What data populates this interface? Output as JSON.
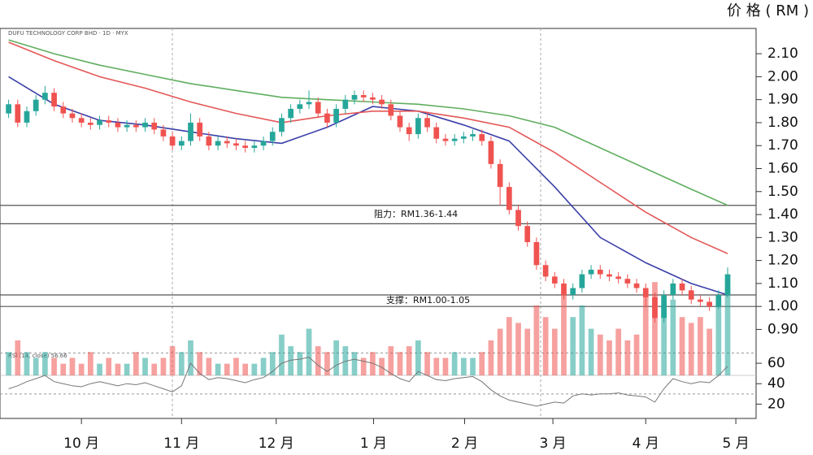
{
  "chart_data": {
    "type": "candlestick",
    "axis_title": "价 格 ( RM )",
    "legend_text": "DUFU TECHNOLOGY CORP BHD · 1D · MYX",
    "rsi_label": "RSI (14, close) 56.66",
    "annotations": [
      {
        "text": "阻力：RM1.36-1.44",
        "lines": [
          1.44,
          1.36
        ]
      },
      {
        "text": "支撑：RM1.00-1.05",
        "lines": [
          1.05,
          1.0
        ]
      }
    ],
    "xlim": [
      -0.5,
      81.5
    ],
    "xticks": [
      {
        "value": 8.0,
        "label": "10 月"
      },
      {
        "value": 19.0,
        "label": "11 月"
      },
      {
        "value": 29.4,
        "label": "12 月"
      },
      {
        "value": 40.1,
        "label": "1 月"
      },
      {
        "value": 50.1,
        "label": "2 月"
      },
      {
        "value": 59.8,
        "label": "3 月"
      },
      {
        "value": 70.0,
        "label": "4 月"
      },
      {
        "value": 79.9,
        "label": "5 月"
      }
    ],
    "ylim": [
      0.7,
      2.21
    ],
    "yticks": [
      {
        "value": 2.1,
        "label": "2.10"
      },
      {
        "value": 2.0,
        "label": "2.00"
      },
      {
        "value": 1.9,
        "label": "1.90"
      },
      {
        "value": 1.8,
        "label": "1.80"
      },
      {
        "value": 1.7,
        "label": "1.70"
      },
      {
        "value": 1.6,
        "label": "1.60"
      },
      {
        "value": 1.5,
        "label": "1.50"
      },
      {
        "value": 1.4,
        "label": "1.40"
      },
      {
        "value": 1.3,
        "label": "1.30"
      },
      {
        "value": 1.2,
        "label": "1.20"
      },
      {
        "value": 1.1,
        "label": "1.10"
      },
      {
        "value": 1.0,
        "label": "1.00"
      },
      {
        "value": 0.9,
        "label": "0.90"
      }
    ],
    "up_color": "#26a69a",
    "down_color": "#ef5350",
    "candles": {
      "x": [
        0,
        1,
        2,
        3,
        4,
        5,
        6,
        7,
        8,
        9,
        10,
        11,
        12,
        13,
        14,
        15,
        16,
        17,
        18,
        19,
        20,
        21,
        22,
        23,
        24,
        25,
        26,
        27,
        28,
        29,
        30,
        31,
        32,
        33,
        34,
        35,
        36,
        37,
        38,
        39,
        40,
        41,
        42,
        43,
        44,
        45,
        46,
        47,
        48,
        49,
        50,
        51,
        52,
        53,
        54,
        55,
        56,
        57,
        58,
        59,
        60,
        61,
        62,
        63,
        64,
        65,
        66,
        67,
        68,
        69,
        70,
        71,
        72,
        73,
        74,
        75,
        76,
        77,
        78,
        79
      ],
      "open": [
        1.84,
        1.88,
        1.8,
        1.85,
        1.9,
        1.93,
        1.87,
        1.84,
        1.82,
        1.8,
        1.79,
        1.81,
        1.8,
        1.78,
        1.79,
        1.78,
        1.8,
        1.77,
        1.74,
        1.7,
        1.72,
        1.8,
        1.74,
        1.7,
        1.72,
        1.71,
        1.7,
        1.69,
        1.7,
        1.72,
        1.76,
        1.82,
        1.86,
        1.88,
        1.89,
        1.84,
        1.8,
        1.86,
        1.9,
        1.92,
        1.91,
        1.9,
        1.88,
        1.83,
        1.78,
        1.75,
        1.82,
        1.78,
        1.73,
        1.72,
        1.73,
        1.74,
        1.75,
        1.72,
        1.62,
        1.52,
        1.42,
        1.35,
        1.28,
        1.18,
        1.13,
        1.1,
        1.05,
        1.08,
        1.14,
        1.16,
        1.14,
        1.13,
        1.12,
        1.1,
        1.08,
        1.04,
        0.95,
        1.05,
        1.1,
        1.07,
        1.03,
        1.02,
        1.0,
        1.05
      ],
      "high": [
        1.9,
        1.9,
        1.87,
        1.92,
        1.96,
        1.95,
        1.89,
        1.86,
        1.84,
        1.82,
        1.83,
        1.83,
        1.82,
        1.81,
        1.81,
        1.82,
        1.82,
        1.79,
        1.76,
        1.74,
        1.84,
        1.82,
        1.76,
        1.74,
        1.74,
        1.73,
        1.72,
        1.72,
        1.74,
        1.78,
        1.84,
        1.88,
        1.9,
        1.94,
        1.91,
        1.86,
        1.88,
        1.92,
        1.94,
        1.94,
        1.93,
        1.92,
        1.9,
        1.85,
        1.8,
        1.84,
        1.84,
        1.8,
        1.75,
        1.75,
        1.76,
        1.77,
        1.77,
        1.74,
        1.64,
        1.54,
        1.44,
        1.37,
        1.3,
        1.2,
        1.15,
        1.12,
        1.1,
        1.16,
        1.18,
        1.18,
        1.16,
        1.15,
        1.14,
        1.12,
        1.1,
        1.06,
        1.07,
        1.12,
        1.12,
        1.09,
        1.05,
        1.04,
        1.07,
        1.17
      ],
      "low": [
        1.82,
        1.78,
        1.78,
        1.83,
        1.88,
        1.85,
        1.82,
        1.8,
        1.78,
        1.77,
        1.77,
        1.78,
        1.76,
        1.76,
        1.76,
        1.76,
        1.75,
        1.72,
        1.68,
        1.68,
        1.7,
        1.72,
        1.68,
        1.68,
        1.69,
        1.68,
        1.67,
        1.67,
        1.68,
        1.7,
        1.74,
        1.8,
        1.84,
        1.86,
        1.82,
        1.78,
        1.78,
        1.84,
        1.88,
        1.89,
        1.88,
        1.86,
        1.81,
        1.76,
        1.72,
        1.73,
        1.76,
        1.71,
        1.7,
        1.7,
        1.71,
        1.72,
        1.7,
        1.6,
        1.44,
        1.4,
        1.33,
        1.26,
        1.16,
        1.11,
        1.08,
        1.03,
        1.03,
        1.06,
        1.12,
        1.12,
        1.11,
        1.1,
        1.08,
        1.06,
        1.0,
        0.93,
        0.93,
        1.03,
        1.05,
        1.01,
        1.0,
        0.98,
        0.99,
        1.04
      ],
      "close": [
        1.88,
        1.8,
        1.85,
        1.9,
        1.93,
        1.87,
        1.84,
        1.82,
        1.8,
        1.79,
        1.81,
        1.8,
        1.78,
        1.79,
        1.78,
        1.8,
        1.77,
        1.74,
        1.7,
        1.72,
        1.8,
        1.74,
        1.7,
        1.72,
        1.71,
        1.7,
        1.69,
        1.7,
        1.72,
        1.76,
        1.82,
        1.86,
        1.88,
        1.89,
        1.84,
        1.8,
        1.86,
        1.9,
        1.92,
        1.91,
        1.9,
        1.88,
        1.83,
        1.78,
        1.75,
        1.82,
        1.78,
        1.73,
        1.72,
        1.73,
        1.74,
        1.75,
        1.72,
        1.62,
        1.52,
        1.42,
        1.35,
        1.28,
        1.18,
        1.13,
        1.1,
        1.05,
        1.08,
        1.14,
        1.16,
        1.14,
        1.13,
        1.12,
        1.1,
        1.08,
        1.04,
        0.95,
        1.05,
        1.1,
        1.07,
        1.03,
        1.02,
        1.0,
        1.05,
        1.14
      ],
      "volume": [
        2,
        3,
        2,
        1.5,
        2,
        1.5,
        1,
        1.5,
        1,
        2,
        1,
        1.5,
        1,
        1,
        2,
        1.5,
        1,
        1.5,
        2.5,
        2,
        3,
        2,
        1.5,
        1,
        1,
        1.5,
        1,
        1,
        1.5,
        2,
        3.5,
        2.5,
        2,
        4,
        2.5,
        2,
        3,
        2.5,
        2,
        1.5,
        2,
        1.5,
        2.5,
        2,
        2.5,
        3,
        2,
        1.5,
        1.5,
        2,
        1.5,
        1.5,
        2,
        3,
        4,
        5,
        4.5,
        4,
        6,
        5,
        4,
        7,
        5,
        6,
        4,
        3.5,
        3,
        4,
        3,
        3.5,
        7,
        8,
        6,
        6.5,
        5,
        4.5,
        5,
        4,
        6,
        7.5
      ],
      "rsi": [
        35,
        38,
        42,
        45,
        48,
        42,
        40,
        38,
        37,
        40,
        42,
        40,
        38,
        40,
        39,
        41,
        38,
        35,
        32,
        38,
        60,
        50,
        44,
        46,
        45,
        43,
        41,
        44,
        46,
        52,
        60,
        63,
        64,
        66,
        58,
        52,
        58,
        62,
        64,
        62,
        60,
        56,
        50,
        45,
        42,
        52,
        48,
        44,
        43,
        45,
        46,
        47,
        42,
        34,
        28,
        24,
        22,
        20,
        18,
        20,
        22,
        21,
        28,
        30,
        29,
        30,
        30,
        31,
        29,
        28,
        27,
        22,
        35,
        45,
        42,
        40,
        42,
        41,
        48,
        57
      ]
    },
    "vlim": [
      0,
      8.5
    ],
    "rsilim": [
      6,
      72
    ],
    "rsiticks": [
      60,
      40,
      20
    ],
    "rsi_levels": [
      70,
      30
    ],
    "series": [
      {
        "color": "#3a3fa8",
        "x": [
          0,
          5,
          10,
          15,
          20,
          25,
          30,
          35,
          40,
          45,
          50,
          55,
          60,
          65,
          70,
          75,
          79
        ],
        "values": [
          2.0,
          1.88,
          1.81,
          1.79,
          1.76,
          1.73,
          1.71,
          1.78,
          1.87,
          1.85,
          1.79,
          1.72,
          1.52,
          1.3,
          1.19,
          1.1,
          1.05
        ]
      },
      {
        "color": "#e45757",
        "x": [
          0,
          5,
          10,
          15,
          20,
          25,
          30,
          35,
          40,
          45,
          50,
          55,
          60,
          65,
          70,
          75,
          79
        ],
        "values": [
          2.15,
          2.07,
          2.0,
          1.95,
          1.89,
          1.84,
          1.8,
          1.83,
          1.85,
          1.85,
          1.82,
          1.78,
          1.67,
          1.54,
          1.41,
          1.3,
          1.23
        ]
      },
      {
        "color": "#5fae5f",
        "x": [
          0,
          5,
          10,
          15,
          20,
          25,
          30,
          35,
          40,
          45,
          50,
          55,
          60,
          65,
          70,
          75,
          79
        ],
        "values": [
          2.16,
          2.1,
          2.05,
          2.01,
          1.97,
          1.94,
          1.91,
          1.9,
          1.89,
          1.88,
          1.86,
          1.83,
          1.78,
          1.69,
          1.6,
          1.51,
          1.44
        ]
      }
    ]
  }
}
